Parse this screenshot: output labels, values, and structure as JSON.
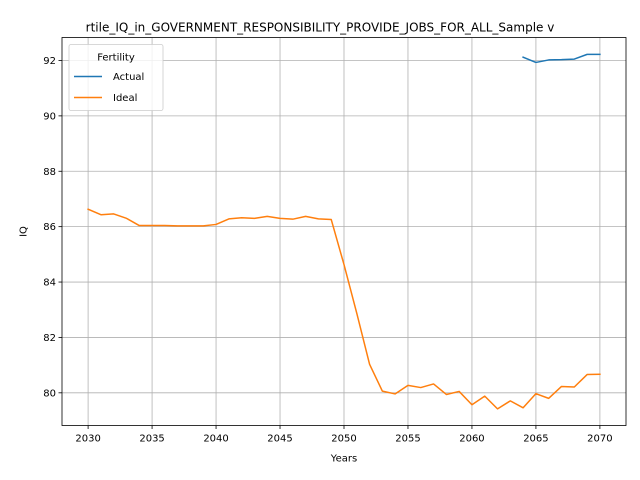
{
  "chart_data": {
    "type": "line",
    "title": "rtile_IQ_in_GOVERNMENT_RESPONSIBILITY_PROVIDE_JOBS_FOR_ALL_Sample v",
    "xlabel": "Years",
    "ylabel": "IQ",
    "xlim": [
      2027.96,
      2072.04
    ],
    "ylim": [
      78.82,
      92.83
    ],
    "xticks": [
      2030,
      2035,
      2040,
      2045,
      2050,
      2055,
      2060,
      2065,
      2070
    ],
    "yticks": [
      80,
      82,
      84,
      86,
      88,
      90,
      92
    ],
    "grid": true,
    "legend": {
      "title": "Fertility",
      "placement": "top-left"
    },
    "series": [
      {
        "name": "Actual",
        "color": "#1f77b4",
        "x": [
          2064,
          2065,
          2066,
          2067,
          2068,
          2069,
          2070
        ],
        "y": [
          92.12,
          91.93,
          92.02,
          92.03,
          92.05,
          92.22,
          92.22
        ]
      },
      {
        "name": "Ideal",
        "color": "#ff7f0e",
        "x": [
          2030,
          2031,
          2032,
          2033,
          2034,
          2035,
          2036,
          2037,
          2038,
          2039,
          2040,
          2041,
          2042,
          2043,
          2044,
          2045,
          2046,
          2047,
          2048,
          2049,
          2050,
          2051,
          2052,
          2053,
          2054,
          2055,
          2056,
          2057,
          2058,
          2059,
          2060,
          2061,
          2062,
          2063,
          2064,
          2065,
          2066,
          2067,
          2068,
          2069,
          2070
        ],
        "y": [
          86.63,
          86.43,
          86.46,
          86.3,
          86.04,
          86.04,
          86.04,
          86.03,
          86.03,
          86.03,
          86.08,
          86.28,
          86.32,
          86.3,
          86.37,
          86.3,
          86.27,
          86.37,
          86.28,
          86.26,
          84.63,
          82.87,
          81.03,
          80.06,
          79.96,
          80.27,
          80.19,
          80.32,
          79.94,
          80.05,
          79.57,
          79.88,
          79.42,
          79.71,
          79.46,
          79.97,
          79.8,
          80.23,
          80.21,
          80.66,
          80.67
        ]
      }
    ]
  }
}
